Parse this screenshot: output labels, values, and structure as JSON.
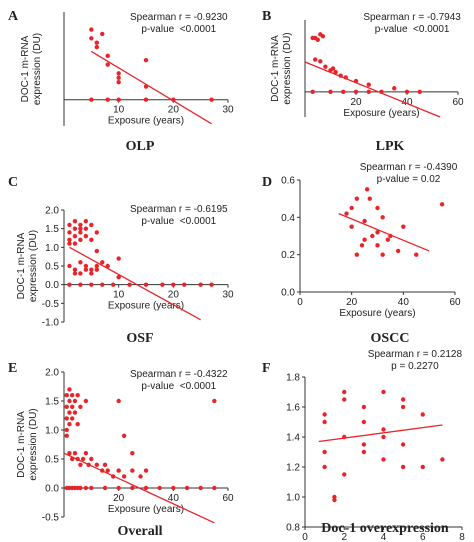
{
  "chart_data": [
    {
      "type": "scatter",
      "panel_label": "A",
      "title": "OLP",
      "x_label": "Exposure (years)",
      "y_label": [
        "DOC-1 m-RNA",
        "expression (DU)"
      ],
      "annotations": [
        "Spearman r = -0.9230",
        "p-value  <0.0001"
      ],
      "color": "#e8242a",
      "x": [
        5,
        5,
        6,
        7,
        6,
        8,
        8,
        10,
        10,
        10,
        15,
        15,
        5,
        8,
        10,
        15,
        20,
        27
      ],
      "y": [
        1.6,
        1.4,
        1.3,
        1.5,
        1.2,
        1.0,
        0.8,
        0.5,
        0.6,
        0.4,
        0.9,
        0.3,
        0,
        0,
        0,
        0,
        0,
        0
      ],
      "fit": {
        "x": [
          5,
          27
        ],
        "y": [
          1.1,
          -0.55
        ]
      },
      "xlim": [
        0,
        30
      ],
      "ylim": [
        -0.6,
        2.0
      ],
      "xticks": [
        10,
        20,
        30
      ]
    },
    {
      "type": "scatter",
      "panel_label": "B",
      "title": "LPK",
      "x_label": "Exposure (years)",
      "y_label": [
        "DOC-1 m-RNA",
        "expression (DU)"
      ],
      "annotations": [
        "Spearman r = -0.7943",
        "p-value  <0.0001"
      ],
      "color": "#e8242a",
      "x": [
        3,
        4,
        5,
        6,
        7,
        4,
        6,
        8,
        10,
        11,
        12,
        14,
        16,
        20,
        25,
        35,
        3,
        10,
        15,
        20,
        25,
        30,
        40,
        45
      ],
      "y": [
        1.5,
        1.5,
        1.45,
        1.6,
        1.55,
        0.9,
        0.85,
        0.7,
        0.6,
        0.65,
        0.55,
        0.45,
        0.4,
        0.3,
        0.2,
        0.1,
        0,
        0,
        0,
        0,
        0,
        0,
        0,
        0
      ],
      "fit": {
        "x": [
          0,
          53
        ],
        "y": [
          0.83,
          -0.7
        ]
      },
      "xlim": [
        0,
        60
      ],
      "ylim": [
        -0.7,
        2.0
      ],
      "xticks": [
        20,
        40,
        60
      ]
    },
    {
      "type": "scatter",
      "panel_label": "C",
      "title": "OSF",
      "x_label": "Exposure (years)",
      "y_label": [
        "DOC-1 m-RNA",
        "expression (DU)"
      ],
      "annotations": [
        "Spearman r = -0.6195",
        "p-value  <0.0001"
      ],
      "color": "#e8242a",
      "x": [
        1,
        1,
        1,
        1,
        2,
        2,
        2,
        2,
        3,
        3,
        3,
        3,
        4,
        4,
        4,
        5,
        5,
        6,
        1,
        2,
        3,
        4,
        5,
        6,
        7,
        8,
        2,
        3,
        4,
        5,
        6,
        10,
        1,
        3,
        5,
        7,
        9,
        12,
        15,
        18,
        20,
        22,
        25,
        27,
        10,
        6
      ],
      "y": [
        1.6,
        1.4,
        1.2,
        1.1,
        1.7,
        1.5,
        1.3,
        1.1,
        1.6,
        1.5,
        1.4,
        1.2,
        1.7,
        1.5,
        1.3,
        1.6,
        1.2,
        1.4,
        0.5,
        0.4,
        0.6,
        0.5,
        0.4,
        0.5,
        0.6,
        0.5,
        0.3,
        0.3,
        0.4,
        0.3,
        0.4,
        0.7,
        0,
        0,
        0,
        0,
        0,
        0,
        0,
        0,
        0,
        0,
        0,
        0,
        0.2,
        0.9
      ],
      "fit": {
        "x": [
          1,
          25
        ],
        "y": [
          1.0,
          -0.94
        ]
      },
      "xlim": [
        0,
        30
      ],
      "ylim": [
        -1,
        2
      ],
      "xticks": [
        10,
        20,
        30
      ],
      "yticks": [
        {
          "value": 2,
          "label": "2.0"
        },
        1.5,
        {
          "value": 1,
          "label": "1.0"
        },
        0.5,
        {
          "value": 0,
          "label": "0.0"
        },
        -0.5,
        {
          "value": -1,
          "label": "-1.0"
        }
      ]
    },
    {
      "type": "scatter",
      "panel_label": "D",
      "title": "OSCC",
      "x_label": "Exposure (years)",
      "annotations": [
        "Spearman r = -0.4390",
        "p-value = 0.02"
      ],
      "color": "#e8242a",
      "x": [
        20,
        22,
        18,
        25,
        26,
        27,
        30,
        32,
        28,
        25,
        30,
        32,
        35,
        38,
        40,
        45,
        55,
        20,
        24,
        30,
        34,
        22
      ],
      "y": [
        0.45,
        0.5,
        0.42,
        0.38,
        0.55,
        0.5,
        0.45,
        0.4,
        0.3,
        0.28,
        0.25,
        0.2,
        0.3,
        0.22,
        0.35,
        0.2,
        0.47,
        0.35,
        0.25,
        0.32,
        0.28,
        0.2
      ],
      "fit": {
        "x": [
          15,
          50
        ],
        "y": [
          0.42,
          0.22
        ]
      },
      "xlim": [
        0,
        60
      ],
      "ylim": [
        0,
        0.6
      ],
      "xticks": [
        0,
        20,
        40,
        60
      ],
      "yticks": [
        0.6,
        0.4,
        0.2,
        {
          "value": 0,
          "label": "0.0"
        }
      ]
    },
    {
      "type": "scatter",
      "panel_label": "E",
      "title": "Overall",
      "x_label": "Exposure (years)",
      "y_label": [
        "DOC-1 m-RNA",
        "expression (DU)"
      ],
      "annotations": [
        "Spearman r = -0.4322",
        "p-value  <0.0001"
      ],
      "color": "#e8242a",
      "x": [
        1,
        1,
        1,
        1,
        1,
        2,
        2,
        2,
        2,
        3,
        3,
        3,
        4,
        4,
        5,
        5,
        6,
        8,
        2,
        3,
        4,
        5,
        6,
        7,
        8,
        9,
        10,
        12,
        14,
        15,
        16,
        18,
        20,
        22,
        25,
        28,
        30,
        1,
        2,
        3,
        4,
        5,
        6,
        8,
        10,
        15,
        20,
        25,
        30,
        35,
        40,
        45,
        50,
        55,
        20,
        22,
        25,
        55
      ],
      "y": [
        1.6,
        1.4,
        1.2,
        1.0,
        0.9,
        1.7,
        1.5,
        1.3,
        1.1,
        1.6,
        1.4,
        1.2,
        1.5,
        1.3,
        1.6,
        1.1,
        1.4,
        1.5,
        0.6,
        0.5,
        0.6,
        0.5,
        0.4,
        0.5,
        0.6,
        0.4,
        0.5,
        0.4,
        0.3,
        0.4,
        0.3,
        0.2,
        0.3,
        0.2,
        0.3,
        0.2,
        0.3,
        0,
        0,
        0,
        0,
        0,
        0,
        0,
        0,
        0,
        0,
        0,
        0,
        0,
        0,
        0,
        0,
        0,
        1.5,
        0.9,
        0.6,
        1.5
      ],
      "fit": {
        "x": [
          0,
          55
        ],
        "y": [
          0.6,
          -0.6
        ]
      },
      "xlim": [
        0,
        60
      ],
      "ylim": [
        -0.5,
        2
      ],
      "xticks": [
        20,
        40,
        60
      ],
      "yticks": [
        {
          "value": 2,
          "label": "2.0"
        },
        1.5,
        {
          "value": 1,
          "label": "1.0"
        },
        0.5,
        {
          "value": 0,
          "label": "0.0"
        },
        -0.5
      ]
    },
    {
      "type": "scatter",
      "panel_label": "F",
      "title": "Doc-1 overexpression",
      "x_label": "Exposure (years)",
      "annotations": [
        "Spearman r = 0.2128",
        "p = 0.2270"
      ],
      "color": "#e8242a",
      "x": [
        1,
        1,
        1,
        1,
        1.5,
        1.5,
        2,
        2,
        2,
        2,
        3,
        3,
        3,
        3,
        4,
        4,
        4,
        4,
        5,
        5,
        5,
        5,
        6,
        6,
        7
      ],
      "y": [
        1.2,
        1.3,
        1.5,
        1.55,
        1.0,
        0.98,
        1.4,
        1.15,
        1.65,
        1.7,
        1.5,
        1.3,
        1.35,
        1.6,
        1.7,
        1.4,
        1.25,
        1.45,
        1.6,
        1.65,
        1.35,
        1.2,
        1.55,
        1.2,
        1.25
      ],
      "fit": {
        "x": [
          0.7,
          7
        ],
        "y": [
          1.37,
          1.48
        ]
      },
      "xlim": [
        0,
        8
      ],
      "ylim": [
        0.8,
        1.8
      ],
      "xticks": [
        0,
        2,
        4,
        6,
        8
      ],
      "yticks": [
        1.8,
        1.6,
        1.4,
        1.2,
        {
          "value": 1,
          "label": "1.0"
        },
        0.8
      ]
    }
  ]
}
